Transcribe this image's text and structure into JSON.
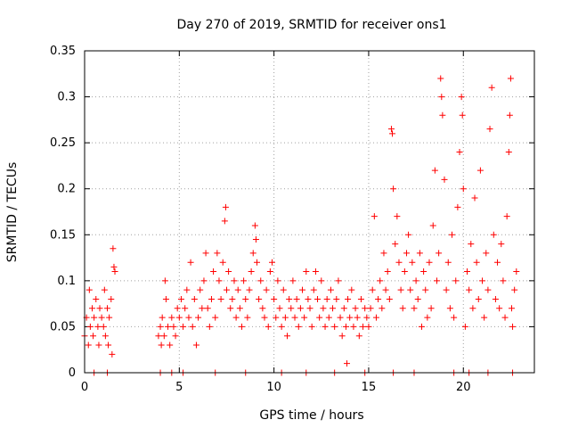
{
  "chart_data": {
    "type": "scatter",
    "title": "Day 270 of 2019, SRMTID for receiver ons1",
    "xlabel": "GPS time / hours",
    "ylabel": "SRMTID / TECUs",
    "xlim": [
      0,
      23.75
    ],
    "ylim": [
      0,
      0.35
    ],
    "xticks": [
      0,
      5,
      10,
      15,
      20
    ],
    "xtick_labels": [
      "0",
      "5",
      "10",
      "15",
      "20"
    ],
    "yticks": [
      0,
      0.05,
      0.1,
      0.15,
      0.2,
      0.25,
      0.3,
      0.35
    ],
    "ytick_labels": [
      "0",
      "0.05",
      "0.1",
      "0.15",
      "0.2",
      "0.25",
      "0.3",
      "0.35"
    ],
    "grid": true,
    "marker": "+",
    "color": "#ff0000",
    "series": [
      {
        "name": "SRMTID",
        "points": [
          [
            0.0,
            0.04
          ],
          [
            0.1,
            0.06
          ],
          [
            0.2,
            0.03
          ],
          [
            0.25,
            0.09
          ],
          [
            0.3,
            0.05
          ],
          [
            0.4,
            0.07
          ],
          [
            0.45,
            0.04
          ],
          [
            0.5,
            0.06
          ],
          [
            0.6,
            0.08
          ],
          [
            0.7,
            0.05
          ],
          [
            0.75,
            0.03
          ],
          [
            0.8,
            0.07
          ],
          [
            0.9,
            0.06
          ],
          [
            1.0,
            0.05
          ],
          [
            1.05,
            0.09
          ],
          [
            1.1,
            0.04
          ],
          [
            1.2,
            0.07
          ],
          [
            1.25,
            0.03
          ],
          [
            1.3,
            0.06
          ],
          [
            1.4,
            0.08
          ],
          [
            1.45,
            0.02
          ],
          [
            1.5,
            0.135
          ],
          [
            1.55,
            0.115
          ],
          [
            1.6,
            0.11
          ],
          [
            3.9,
            0.04
          ],
          [
            4.0,
            0.05
          ],
          [
            4.05,
            0.03
          ],
          [
            4.1,
            0.06
          ],
          [
            4.2,
            0.04
          ],
          [
            4.25,
            0.1
          ],
          [
            4.3,
            0.08
          ],
          [
            4.4,
            0.05
          ],
          [
            4.5,
            0.03
          ],
          [
            4.6,
            0.06
          ],
          [
            4.7,
            0.05
          ],
          [
            4.8,
            0.04
          ],
          [
            4.9,
            0.07
          ],
          [
            5.0,
            0.06
          ],
          [
            5.1,
            0.08
          ],
          [
            5.2,
            0.05
          ],
          [
            5.3,
            0.07
          ],
          [
            5.4,
            0.09
          ],
          [
            5.5,
            0.06
          ],
          [
            5.6,
            0.12
          ],
          [
            5.7,
            0.05
          ],
          [
            5.8,
            0.08
          ],
          [
            5.9,
            0.03
          ],
          [
            6.0,
            0.06
          ],
          [
            6.1,
            0.09
          ],
          [
            6.2,
            0.07
          ],
          [
            6.3,
            0.1
          ],
          [
            6.4,
            0.13
          ],
          [
            6.5,
            0.07
          ],
          [
            6.6,
            0.05
          ],
          [
            6.7,
            0.08
          ],
          [
            6.8,
            0.11
          ],
          [
            6.9,
            0.06
          ],
          [
            7.0,
            0.13
          ],
          [
            7.1,
            0.1
          ],
          [
            7.2,
            0.08
          ],
          [
            7.3,
            0.12
          ],
          [
            7.4,
            0.165
          ],
          [
            7.45,
            0.18
          ],
          [
            7.5,
            0.09
          ],
          [
            7.6,
            0.11
          ],
          [
            7.7,
            0.07
          ],
          [
            7.8,
            0.08
          ],
          [
            7.9,
            0.1
          ],
          [
            8.0,
            0.06
          ],
          [
            8.1,
            0.09
          ],
          [
            8.2,
            0.07
          ],
          [
            8.3,
            0.05
          ],
          [
            8.4,
            0.1
          ],
          [
            8.5,
            0.08
          ],
          [
            8.6,
            0.06
          ],
          [
            8.7,
            0.09
          ],
          [
            8.8,
            0.11
          ],
          [
            8.9,
            0.13
          ],
          [
            9.0,
            0.16
          ],
          [
            9.05,
            0.145
          ],
          [
            9.1,
            0.12
          ],
          [
            9.2,
            0.08
          ],
          [
            9.3,
            0.1
          ],
          [
            9.4,
            0.07
          ],
          [
            9.5,
            0.06
          ],
          [
            9.6,
            0.09
          ],
          [
            9.7,
            0.05
          ],
          [
            9.8,
            0.11
          ],
          [
            9.9,
            0.12
          ],
          [
            10.0,
            0.08
          ],
          [
            10.1,
            0.06
          ],
          [
            10.2,
            0.1
          ],
          [
            10.3,
            0.07
          ],
          [
            10.4,
            0.05
          ],
          [
            10.5,
            0.09
          ],
          [
            10.6,
            0.06
          ],
          [
            10.7,
            0.04
          ],
          [
            10.8,
            0.08
          ],
          [
            10.9,
            0.07
          ],
          [
            11.0,
            0.1
          ],
          [
            11.1,
            0.06
          ],
          [
            11.2,
            0.08
          ],
          [
            11.3,
            0.05
          ],
          [
            11.4,
            0.07
          ],
          [
            11.5,
            0.09
          ],
          [
            11.6,
            0.06
          ],
          [
            11.7,
            0.11
          ],
          [
            11.8,
            0.08
          ],
          [
            11.9,
            0.07
          ],
          [
            12.0,
            0.05
          ],
          [
            12.1,
            0.09
          ],
          [
            12.2,
            0.11
          ],
          [
            12.3,
            0.08
          ],
          [
            12.4,
            0.06
          ],
          [
            12.5,
            0.1
          ],
          [
            12.6,
            0.07
          ],
          [
            12.7,
            0.05
          ],
          [
            12.8,
            0.08
          ],
          [
            12.9,
            0.06
          ],
          [
            13.0,
            0.09
          ],
          [
            13.1,
            0.07
          ],
          [
            13.2,
            0.05
          ],
          [
            13.3,
            0.08
          ],
          [
            13.4,
            0.1
          ],
          [
            13.5,
            0.06
          ],
          [
            13.6,
            0.04
          ],
          [
            13.7,
            0.07
          ],
          [
            13.8,
            0.05
          ],
          [
            13.85,
            0.01
          ],
          [
            13.9,
            0.08
          ],
          [
            14.0,
            0.06
          ],
          [
            14.1,
            0.09
          ],
          [
            14.2,
            0.05
          ],
          [
            14.3,
            0.07
          ],
          [
            14.4,
            0.06
          ],
          [
            14.5,
            0.04
          ],
          [
            14.6,
            0.08
          ],
          [
            14.7,
            0.05
          ],
          [
            14.8,
            0.07
          ],
          [
            14.9,
            0.06
          ],
          [
            15.0,
            0.05
          ],
          [
            15.1,
            0.07
          ],
          [
            15.2,
            0.09
          ],
          [
            15.3,
            0.17
          ],
          [
            15.4,
            0.06
          ],
          [
            15.5,
            0.08
          ],
          [
            15.6,
            0.1
          ],
          [
            15.7,
            0.07
          ],
          [
            15.8,
            0.13
          ],
          [
            15.9,
            0.09
          ],
          [
            16.0,
            0.11
          ],
          [
            16.1,
            0.08
          ],
          [
            16.2,
            0.265
          ],
          [
            16.25,
            0.26
          ],
          [
            16.3,
            0.2
          ],
          [
            16.4,
            0.14
          ],
          [
            16.5,
            0.17
          ],
          [
            16.6,
            0.12
          ],
          [
            16.7,
            0.09
          ],
          [
            16.8,
            0.07
          ],
          [
            16.9,
            0.11
          ],
          [
            17.0,
            0.13
          ],
          [
            17.1,
            0.15
          ],
          [
            17.2,
            0.09
          ],
          [
            17.3,
            0.12
          ],
          [
            17.4,
            0.07
          ],
          [
            17.5,
            0.1
          ],
          [
            17.6,
            0.08
          ],
          [
            17.7,
            0.13
          ],
          [
            17.8,
            0.05
          ],
          [
            17.9,
            0.11
          ],
          [
            18.0,
            0.09
          ],
          [
            18.1,
            0.06
          ],
          [
            18.2,
            0.12
          ],
          [
            18.3,
            0.07
          ],
          [
            18.4,
            0.16
          ],
          [
            18.5,
            0.22
          ],
          [
            18.6,
            0.1
          ],
          [
            18.7,
            0.13
          ],
          [
            18.8,
            0.32
          ],
          [
            18.85,
            0.3
          ],
          [
            18.9,
            0.28
          ],
          [
            19.0,
            0.21
          ],
          [
            19.1,
            0.09
          ],
          [
            19.2,
            0.12
          ],
          [
            19.3,
            0.07
          ],
          [
            19.4,
            0.15
          ],
          [
            19.5,
            0.06
          ],
          [
            19.6,
            0.1
          ],
          [
            19.7,
            0.18
          ],
          [
            19.8,
            0.24
          ],
          [
            19.9,
            0.3
          ],
          [
            19.95,
            0.28
          ],
          [
            20.0,
            0.2
          ],
          [
            20.1,
            0.05
          ],
          [
            20.2,
            0.11
          ],
          [
            20.3,
            0.09
          ],
          [
            20.4,
            0.14
          ],
          [
            20.5,
            0.07
          ],
          [
            20.6,
            0.19
          ],
          [
            20.7,
            0.12
          ],
          [
            20.8,
            0.08
          ],
          [
            20.9,
            0.22
          ],
          [
            21.0,
            0.1
          ],
          [
            21.1,
            0.06
          ],
          [
            21.2,
            0.13
          ],
          [
            21.3,
            0.09
          ],
          [
            21.4,
            0.265
          ],
          [
            21.5,
            0.31
          ],
          [
            21.6,
            0.15
          ],
          [
            21.7,
            0.08
          ],
          [
            21.8,
            0.12
          ],
          [
            21.9,
            0.07
          ],
          [
            22.0,
            0.14
          ],
          [
            22.1,
            0.1
          ],
          [
            22.2,
            0.06
          ],
          [
            22.3,
            0.17
          ],
          [
            22.4,
            0.24
          ],
          [
            22.45,
            0.28
          ],
          [
            22.5,
            0.32
          ],
          [
            22.55,
            0.07
          ],
          [
            22.6,
            0.05
          ],
          [
            22.7,
            0.09
          ],
          [
            22.8,
            0.11
          ],
          [
            0.5,
            0.0
          ],
          [
            1.2,
            0.0
          ],
          [
            4.0,
            0.0
          ],
          [
            4.6,
            0.0
          ],
          [
            5.2,
            0.0
          ],
          [
            6.9,
            0.0
          ],
          [
            8.5,
            0.0
          ],
          [
            10.4,
            0.0
          ],
          [
            11.7,
            0.0
          ],
          [
            13.2,
            0.0
          ],
          [
            14.8,
            0.0
          ],
          [
            16.3,
            0.0
          ],
          [
            17.4,
            0.0
          ],
          [
            19.5,
            0.0
          ],
          [
            20.3,
            0.0
          ],
          [
            21.3,
            0.0
          ],
          [
            22.6,
            0.0
          ]
        ]
      }
    ]
  }
}
